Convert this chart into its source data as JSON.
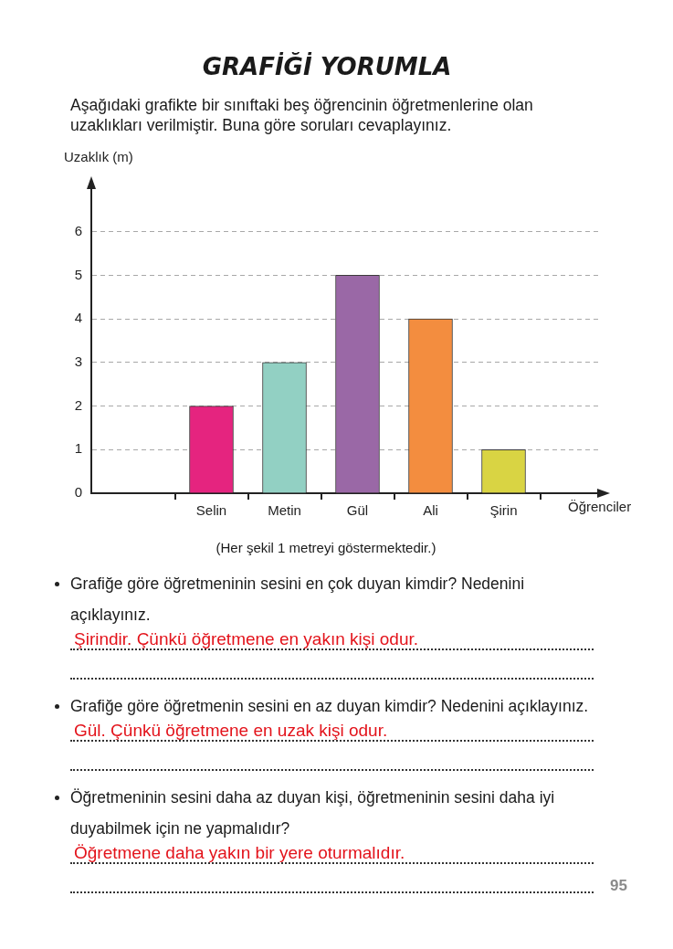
{
  "chart_data": {
    "type": "bar",
    "title": "GRAFİĞİ YORUMLA",
    "subtitle": "Aşağıdaki grafikte bir sınıftaki beş öğrencinin öğretmenlerine olan uzaklıkları verilmiştir. Buna göre soruları cevaplayınız.",
    "xlabel": "Öğrenciler",
    "ylabel": "Uzaklık (m)",
    "categories": [
      "Selin",
      "Metin",
      "Gül",
      "Ali",
      "Şirin"
    ],
    "values": [
      2,
      3,
      5,
      4,
      1
    ],
    "colors": [
      "#e5247f",
      "#92d0c3",
      "#9a68a6",
      "#f38d3f",
      "#d9d443"
    ],
    "ylim": [
      0,
      7
    ],
    "yticks": [
      0,
      1,
      2,
      3,
      4,
      5,
      6
    ],
    "grid": "y",
    "annotations": [
      "(Her şekil 1 metreyi göstermektedir.)",
      "Grafiğe göre öğretmeninin sesini en çok duyan kimdir? Nedenini açıklayınız.",
      "Şirindir. Çünkü öğretmene en yakın kişi odur.",
      "Grafiğe göre öğretmenin sesini en az duyan kimdir? Nedenini açıklayınız.",
      "Gül. Çünkü öğretmene en uzak kişi odur.",
      "Öğretmeninin sesini daha az duyan kişi, öğretmeninin sesini daha iyi duyabilmek için ne yapmalıdır?",
      "Öğretmene daha yakın bir yere oturmalıdır.",
      "95"
    ]
  }
}
